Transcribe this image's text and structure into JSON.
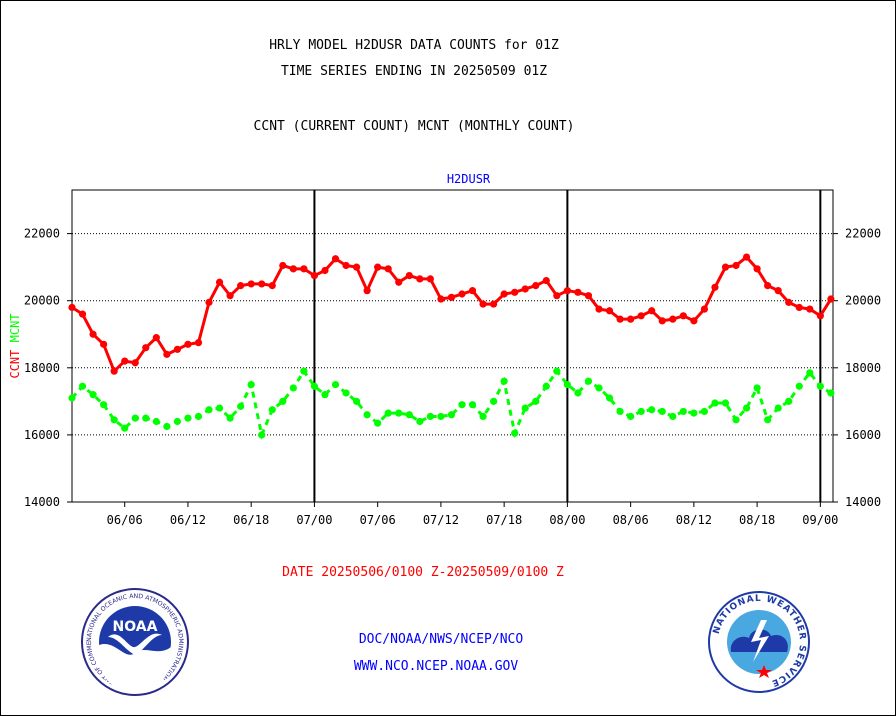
{
  "header": {
    "line1": "HRLY MODEL H2DUSR DATA COUNTS for 01Z",
    "line2": "TIME SERIES ENDING IN 20250509 01Z",
    "line3": "CCNT (CURRENT COUNT) MCNT (MONTHLY COUNT)"
  },
  "footer": {
    "date_range": "DATE 20250506/0100 Z-20250509/0100 Z",
    "org_path": "DOC/NOAA/NWS/NCEP/NCO",
    "website": "WWW.NCO.NCEP.NOAA.GOV"
  },
  "logos": {
    "noaa_text": "NOAA",
    "noaa_ring": "NATIONAL OCEANIC AND ATMOSPHERIC ADMINISTRATION · U.S. DEPARTMENT OF COMMERCE ·",
    "nws_ring": "NATIONAL WEATHER SERVICE"
  },
  "chart_data": {
    "type": "line",
    "title": "H2DUSR",
    "xlabel": "",
    "ylabel_left": [
      "CCNT",
      "MCNT"
    ],
    "ylim": [
      14000,
      23300
    ],
    "yticks": [
      14000,
      16000,
      18000,
      20000,
      22000
    ],
    "ytick_labels": [
      "14000",
      "16000",
      "18000",
      "20000",
      "22000"
    ],
    "xtick_labels": [
      "06/06",
      "06/12",
      "06/18",
      "07/00",
      "07/06",
      "07/12",
      "07/18",
      "08/00",
      "08/06",
      "08/12",
      "08/18",
      "09/00"
    ],
    "xtick_hours": [
      6,
      12,
      18,
      24,
      30,
      36,
      42,
      48,
      54,
      60,
      66,
      72
    ],
    "xlim_hours": [
      1,
      73.2
    ],
    "day_boundary_hours": [
      24,
      48,
      72
    ],
    "grid": "horizontal dotted",
    "x_hours": [
      1,
      2,
      3,
      4,
      5,
      6,
      7,
      8,
      9,
      10,
      11,
      12,
      13,
      14,
      15,
      16,
      17,
      18,
      19,
      20,
      21,
      22,
      23,
      24,
      25,
      26,
      27,
      28,
      29,
      30,
      31,
      32,
      33,
      34,
      35,
      36,
      37,
      38,
      39,
      40,
      41,
      42,
      43,
      44,
      45,
      46,
      47,
      48,
      49,
      50,
      51,
      52,
      53,
      54,
      55,
      56,
      57,
      58,
      59,
      60,
      61,
      62,
      63,
      64,
      65,
      66,
      67,
      68,
      69,
      70,
      71,
      72,
      73
    ],
    "series": [
      {
        "name": "CCNT",
        "color": "#ff0000",
        "values": [
          19800,
          19600,
          19000,
          18700,
          17900,
          18200,
          18150,
          18600,
          18900,
          18400,
          18550,
          18700,
          18750,
          19950,
          20550,
          20150,
          20450,
          20500,
          20500,
          20450,
          21050,
          20950,
          20950,
          20750,
          20900,
          21250,
          21050,
          21000,
          20300,
          21000,
          20950,
          20550,
          20750,
          20650,
          20650,
          20050,
          20100,
          20200,
          20300,
          19900,
          19900,
          20200,
          20250,
          20350,
          20450,
          20600,
          20150,
          20300,
          20250,
          20150,
          19750,
          19700,
          19450,
          19450,
          19550,
          19700,
          19400,
          19450,
          19550,
          19400,
          19750,
          20400,
          21000,
          21050,
          21300,
          20950,
          20450,
          20300,
          19950,
          19800,
          19750,
          19550,
          20050
        ]
      },
      {
        "name": "MCNT",
        "color": "#00ff00",
        "values": [
          17100,
          17450,
          17200,
          16900,
          16450,
          16200,
          16500,
          16500,
          16400,
          16250,
          16400,
          16500,
          16550,
          16750,
          16800,
          16500,
          16850,
          17500,
          16000,
          16750,
          17000,
          17400,
          17900,
          17450,
          17200,
          17500,
          17250,
          17000,
          16600,
          16350,
          16650,
          16650,
          16600,
          16400,
          16550,
          16550,
          16600,
          16900,
          16900,
          16550,
          17000,
          17600,
          16050,
          16800,
          17000,
          17450,
          17900,
          17500,
          17250,
          17600,
          17400,
          17100,
          16700,
          16550,
          16700,
          16750,
          16700,
          16550,
          16700,
          16650,
          16700,
          16950,
          16950,
          16450,
          16800,
          17400,
          16450,
          16800,
          17000,
          17450,
          17850,
          17450,
          17250
        ]
      }
    ]
  }
}
